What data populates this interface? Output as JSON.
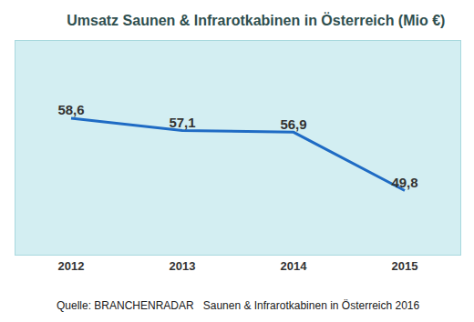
{
  "chart_data": {
    "type": "line",
    "title": "Umsatz Saunen & Infrarotkabinen in Österreich (Mio €)",
    "categories": [
      "2012",
      "2013",
      "2014",
      "2015"
    ],
    "values": [
      58.6,
      57.1,
      56.9,
      49.8
    ],
    "value_labels": [
      "58,6",
      "57,1",
      "56,9",
      "49,8"
    ],
    "color": "#1f6bc4",
    "ylim": [
      42,
      68
    ],
    "grid": false,
    "data_labels": true,
    "tick_labels": "x",
    "annotations": [
      "Quelle: BRANCHENRADAR   Saunen & Infrarotkabinen in Österreich 2016"
    ]
  }
}
